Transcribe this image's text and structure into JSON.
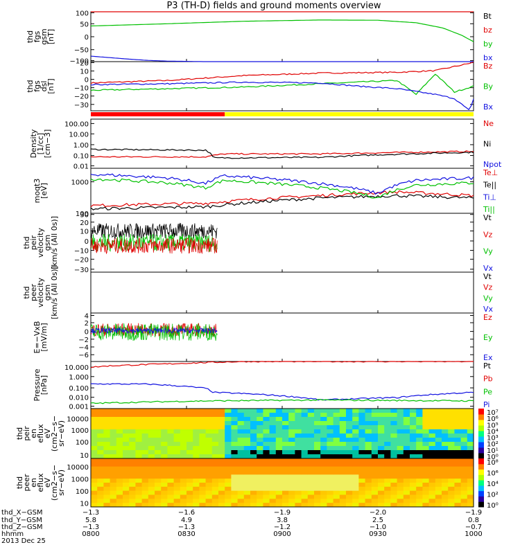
{
  "title": "P3 (TH-D) fields and ground moments overview",
  "panels": [
    {
      "ylabel": [
        "thd",
        "fgs",
        "gsm",
        "[nT]"
      ],
      "yticks": [
        "100",
        "50",
        "0",
        "−50",
        "−100"
      ],
      "legend": [
        {
          "text": "Bt",
          "color": "#000000"
        },
        {
          "text": "bz",
          "color": "#e00000"
        },
        {
          "text": "by",
          "color": "#00c000"
        },
        {
          "text": "bx",
          "color": "#1010e0"
        }
      ]
    },
    {
      "ylabel": [
        "thd",
        "fgs",
        "dsl",
        "[nT]"
      ],
      "yticks": [
        "20",
        "10",
        "0",
        "−10",
        "−20",
        "−30"
      ],
      "legend": [
        {
          "text": "Bz",
          "color": "#e00000"
        },
        {
          "text": "By",
          "color": "#00c000"
        },
        {
          "text": "Bx",
          "color": "#1010e0"
        }
      ]
    },
    {
      "ylabel": [
        "Density",
        "[1/cc]",
        "[cm−3]"
      ],
      "yticks": [
        "100.00",
        "10.00",
        "1.00",
        "0.10",
        "0.01"
      ],
      "legend": [
        {
          "text": "Ne",
          "color": "#e00000"
        },
        {
          "text": "Ni",
          "color": "#000000"
        },
        {
          "text": "Npot",
          "color": "#1010e0"
        }
      ]
    },
    {
      "ylabel": [
        "moqt3",
        "[eV]"
      ],
      "yticks": [
        "1000",
        "100"
      ],
      "legend": [
        {
          "text": "Te⊥",
          "color": "#e00000"
        },
        {
          "text": "Te||",
          "color": "#000000"
        },
        {
          "text": "Ti⊥",
          "color": "#1010e0"
        },
        {
          "text": "Ti||",
          "color": "#00c000"
        }
      ]
    },
    {
      "ylabel": [
        "thd",
        "peir",
        "velocity",
        "gsm",
        "[km/s (All 0s)]"
      ],
      "yticks": [
        "30",
        "20",
        "10",
        "0",
        "−10",
        "−20",
        "−30"
      ],
      "legend": [
        {
          "text": "Vt",
          "color": "#000000"
        },
        {
          "text": "Vz",
          "color": "#e00000"
        },
        {
          "text": "Vy",
          "color": "#00c000"
        },
        {
          "text": "Vx",
          "color": "#1010e0"
        }
      ]
    },
    {
      "ylabel": [
        "thd",
        "peer",
        "velocity",
        "gsm",
        "[km/s (All 0s)]"
      ],
      "yticks": [],
      "legend": [
        {
          "text": "Vt",
          "color": "#000000"
        },
        {
          "text": "Vz",
          "color": "#e00000"
        },
        {
          "text": "Vy",
          "color": "#00c000"
        },
        {
          "text": "Vx",
          "color": "#1010e0"
        }
      ]
    },
    {
      "ylabel": [
        "E=−VxB",
        "[mV/m]"
      ],
      "yticks": [
        "4",
        "2",
        "0",
        "−2",
        "−4",
        "−6"
      ],
      "legend": [
        {
          "text": "Ez",
          "color": "#e00000"
        },
        {
          "text": "Ey",
          "color": "#00c000"
        },
        {
          "text": "Ex",
          "color": "#1010e0"
        }
      ]
    },
    {
      "ylabel": [
        "Pressure",
        "[nPa]"
      ],
      "yticks": [
        "10.000",
        "1.000",
        "0.100",
        "0.010",
        "0.001"
      ],
      "legend": [
        {
          "text": "Pt",
          "color": "#000000"
        },
        {
          "text": "Pb",
          "color": "#e00000"
        },
        {
          "text": "Pe",
          "color": "#00c000"
        },
        {
          "text": "Pi",
          "color": "#1010e0"
        }
      ]
    },
    {
      "ylabel": [
        "thd",
        "peir",
        "en",
        "eflux",
        "eV",
        "(cm2−s−",
        "sr−eV)"
      ],
      "yticks": [
        "10000",
        "1000",
        "100",
        "10"
      ],
      "colorbar": [
        "10⁷",
        "10⁶",
        "10⁵",
        "10⁴",
        "10³",
        "10²",
        "10¹",
        "10⁰"
      ]
    },
    {
      "ylabel": [
        "thd",
        "peer",
        "en",
        "eflux",
        "eV",
        "(cm2−s−",
        "sr−eV)"
      ],
      "yticks": [
        "10000",
        "1000",
        "100",
        "10"
      ],
      "colorbar": [
        "10⁸",
        "10⁶",
        "10⁴",
        "10²",
        "10⁰"
      ]
    }
  ],
  "footer": {
    "row_labels": [
      "thd_X−GSM",
      "thd_Y−GSM",
      "thd_Z−GSM",
      "hhmm",
      "2013 Dec 25"
    ],
    "columns": [
      {
        "x": "−1.3",
        "y": "5.8",
        "z": "−1.3",
        "t": "0800"
      },
      {
        "x": "−1.6",
        "y": "4.9",
        "z": "−1.3",
        "t": "0830"
      },
      {
        "x": "−1.9",
        "y": "3.8",
        "z": "−1.2",
        "t": "0900"
      },
      {
        "x": "−2.0",
        "y": "2.5",
        "z": "−1.0",
        "t": "0930"
      },
      {
        "x": "−1.9",
        "y": "0.8",
        "z": "−0.7",
        "t": "1000"
      }
    ]
  },
  "chart_data": {
    "type": "line",
    "x_range": [
      "08:00",
      "10:00"
    ],
    "series": [
      {
        "name": "bz",
        "panel": 1,
        "ylim": [
          -100,
          100
        ],
        "t": [
          0,
          1
        ],
        "values": [
          100,
          100
        ]
      },
      {
        "name": "by",
        "panel": 1,
        "ylim": [
          -100,
          100
        ],
        "t": [
          0,
          0.2,
          0.4,
          0.6,
          0.75,
          0.85,
          0.92,
          0.97,
          1.0
        ],
        "values": [
          43,
          52,
          62,
          67,
          66,
          56,
          35,
          5,
          -20
        ]
      },
      {
        "name": "bx",
        "panel": 1,
        "ylim": [
          -100,
          100
        ],
        "t": [
          0,
          0.05,
          0.1,
          0.15,
          0.2,
          0.3,
          0.5,
          1.0
        ],
        "values": [
          -78,
          -84,
          -90,
          -95,
          -98,
          -100,
          -100,
          -100
        ]
      },
      {
        "name": "Bz",
        "panel": 2,
        "ylim": [
          -35,
          25
        ],
        "t": [
          0,
          0.2,
          0.4,
          0.6,
          0.8,
          0.9,
          1.0
        ],
        "values": [
          -1,
          2,
          8,
          11,
          12,
          14,
          24
        ]
      },
      {
        "name": "By",
        "panel": 2,
        "ylim": [
          -35,
          25
        ],
        "t": [
          0,
          0.2,
          0.4,
          0.6,
          0.8,
          0.85,
          0.9,
          0.95,
          1.0
        ],
        "values": [
          -10,
          -8,
          -6,
          -2,
          2,
          -15,
          10,
          -12,
          -5
        ]
      },
      {
        "name": "Bx",
        "panel": 2,
        "ylim": [
          -35,
          25
        ],
        "t": [
          0,
          0.2,
          0.4,
          0.6,
          0.7,
          0.8,
          0.9,
          0.95,
          0.99,
          1.0
        ],
        "values": [
          -3,
          -2,
          0,
          -1,
          -5,
          -8,
          -15,
          -20,
          -35,
          -20
        ]
      },
      {
        "name": "Ne",
        "panel": 3,
        "ylim": [
          0.01,
          200
        ],
        "log": true,
        "t": [
          0,
          0.3,
          0.35,
          0.6,
          1.0
        ],
        "values": [
          0.1,
          0.1,
          0.18,
          0.18,
          0.3
        ]
      },
      {
        "name": "Ni",
        "panel": 3,
        "ylim": [
          0.01,
          200
        ],
        "log": true,
        "t": [
          0,
          0.3,
          0.32,
          0.6,
          1.0
        ],
        "values": [
          0.45,
          0.38,
          0.08,
          0.09,
          0.25
        ]
      },
      {
        "name": "Te⊥",
        "panel": 4,
        "ylim": [
          100,
          6000
        ],
        "log": true,
        "t": [
          0,
          0.3,
          0.6,
          0.8,
          1.0
        ],
        "values": [
          200,
          250,
          500,
          700,
          500
        ]
      },
      {
        "name": "Te||",
        "panel": 4,
        "ylim": [
          100,
          6000
        ],
        "log": true,
        "t": [
          0,
          0.3,
          0.6,
          0.8,
          1.0
        ],
        "values": [
          150,
          180,
          400,
          500,
          400
        ]
      },
      {
        "name": "Ti⊥",
        "panel": 4,
        "ylim": [
          100,
          6000
        ],
        "log": true,
        "t": [
          0,
          0.2,
          0.3,
          0.35,
          0.6,
          0.75,
          0.85,
          1.0
        ],
        "values": [
          3500,
          2500,
          1500,
          3000,
          1500,
          600,
          2000,
          2500
        ]
      },
      {
        "name": "Ti||",
        "panel": 4,
        "ylim": [
          100,
          6000
        ],
        "log": true,
        "t": [
          0,
          0.2,
          0.3,
          0.35,
          0.6,
          0.75,
          0.85,
          1.0
        ],
        "values": [
          2300,
          1600,
          1000,
          2000,
          1000,
          400,
          1300,
          1600
        ]
      },
      {
        "name": "Pb",
        "panel": 8,
        "ylim": [
          0.001,
          20
        ],
        "log": true,
        "t": [
          0,
          0.05,
          0.2,
          0.4,
          1.0
        ],
        "values": [
          6,
          8,
          12,
          20,
          20
        ]
      },
      {
        "name": "Pi",
        "panel": 8,
        "ylim": [
          0.001,
          20
        ],
        "log": true,
        "t": [
          0,
          0.15,
          0.3,
          0.32,
          0.6,
          0.8,
          1.0
        ],
        "values": [
          0.18,
          0.17,
          0.07,
          0.03,
          0.006,
          0.01,
          0.03
        ]
      },
      {
        "name": "Pe",
        "panel": 8,
        "ylim": [
          0.001,
          20
        ],
        "log": true,
        "t": [
          0,
          0.3,
          0.6,
          1.0
        ],
        "values": [
          0.003,
          0.005,
          0.006,
          0.005
        ]
      }
    ],
    "noisy_series": [
      {
        "name": "Vt",
        "panel": 5,
        "ylim": [
          -30,
          30
        ],
        "t_end": 0.33,
        "mean": 12,
        "amp": 8
      },
      {
        "name": "Vy",
        "panel": 5,
        "ylim": [
          -30,
          30
        ],
        "t_end": 0.33,
        "mean": 0,
        "amp": 9
      },
      {
        "name": "Vz",
        "panel": 5,
        "ylim": [
          -30,
          30
        ],
        "t_end": 0.33,
        "mean": -3,
        "amp": 8
      },
      {
        "name": "Ez",
        "panel": 7,
        "ylim": [
          -7,
          4
        ],
        "t_end": 0.33,
        "mean": 0.2,
        "amp": 1.5
      },
      {
        "name": "Ey",
        "panel": 7,
        "ylim": [
          -7,
          4
        ],
        "t_end": 0.33,
        "mean": -0.3,
        "amp": 2
      },
      {
        "name": "Ex",
        "panel": 7,
        "ylim": [
          -7,
          4
        ],
        "t_end": 0.33,
        "mean": 0,
        "amp": 0.6
      }
    ],
    "mode_bar": [
      {
        "t": [
          0,
          0.35
        ],
        "color": "#ff0000"
      },
      {
        "t": [
          0.35,
          1.0
        ],
        "color": "#ffff00"
      }
    ],
    "spectrograms": [
      {
        "name": "peir",
        "panel": 9,
        "energy_range_eV": [
          5,
          25000
        ],
        "clim": "10^0–10^7"
      },
      {
        "name": "peer",
        "panel": 10,
        "energy_range_eV": [
          5,
          25000
        ],
        "clim": "10^0–10^8"
      }
    ]
  }
}
